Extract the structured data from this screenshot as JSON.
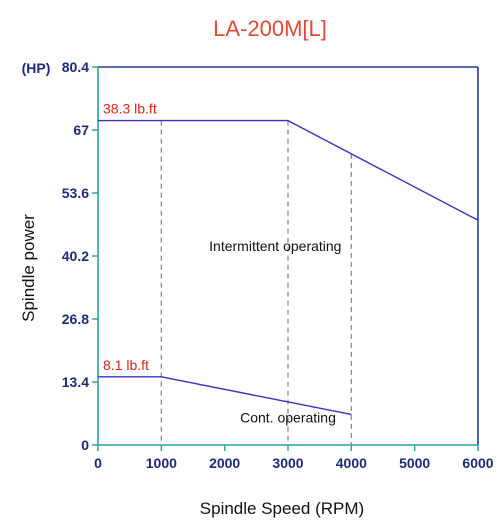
{
  "chart_data": {
    "type": "line",
    "title": "LA-200M[L]",
    "xlabel": "Spindle Speed (RPM)",
    "ylabel": "Spindle power",
    "yunit": "(HP)",
    "xlim": [
      0,
      6000
    ],
    "ylim": [
      0,
      80.4
    ],
    "x_ticks": [
      "0",
      "1000",
      "2000",
      "3000",
      "4000",
      "5000",
      "6000"
    ],
    "y_ticks": [
      "0",
      "13.4",
      "26.8",
      "40.2",
      "53.6",
      "67",
      "80.4"
    ],
    "grid": false,
    "series": [
      {
        "name": "Intermittent operating",
        "x": [
          0,
          3000,
          6000
        ],
        "y": [
          69,
          69,
          47.8
        ],
        "torque_label": "38.3 lb.ft"
      },
      {
        "name": "Cont. operating",
        "x": [
          0,
          1000,
          4000
        ],
        "y": [
          14.5,
          14.5,
          6.5
        ],
        "torque_label": "8.1 lb.ft"
      }
    ],
    "drop_lines_x": [
      1000,
      3000,
      4000
    ],
    "colors": {
      "title": "#e04a35",
      "torque_label": "#d8261c",
      "curve": "#3d2fc4",
      "tick": "#1c2a7a",
      "frame_top_right": "#2a3a9a",
      "frame_left_bottom": "#2aa39a",
      "drop_line": "#8a8a8a"
    }
  }
}
